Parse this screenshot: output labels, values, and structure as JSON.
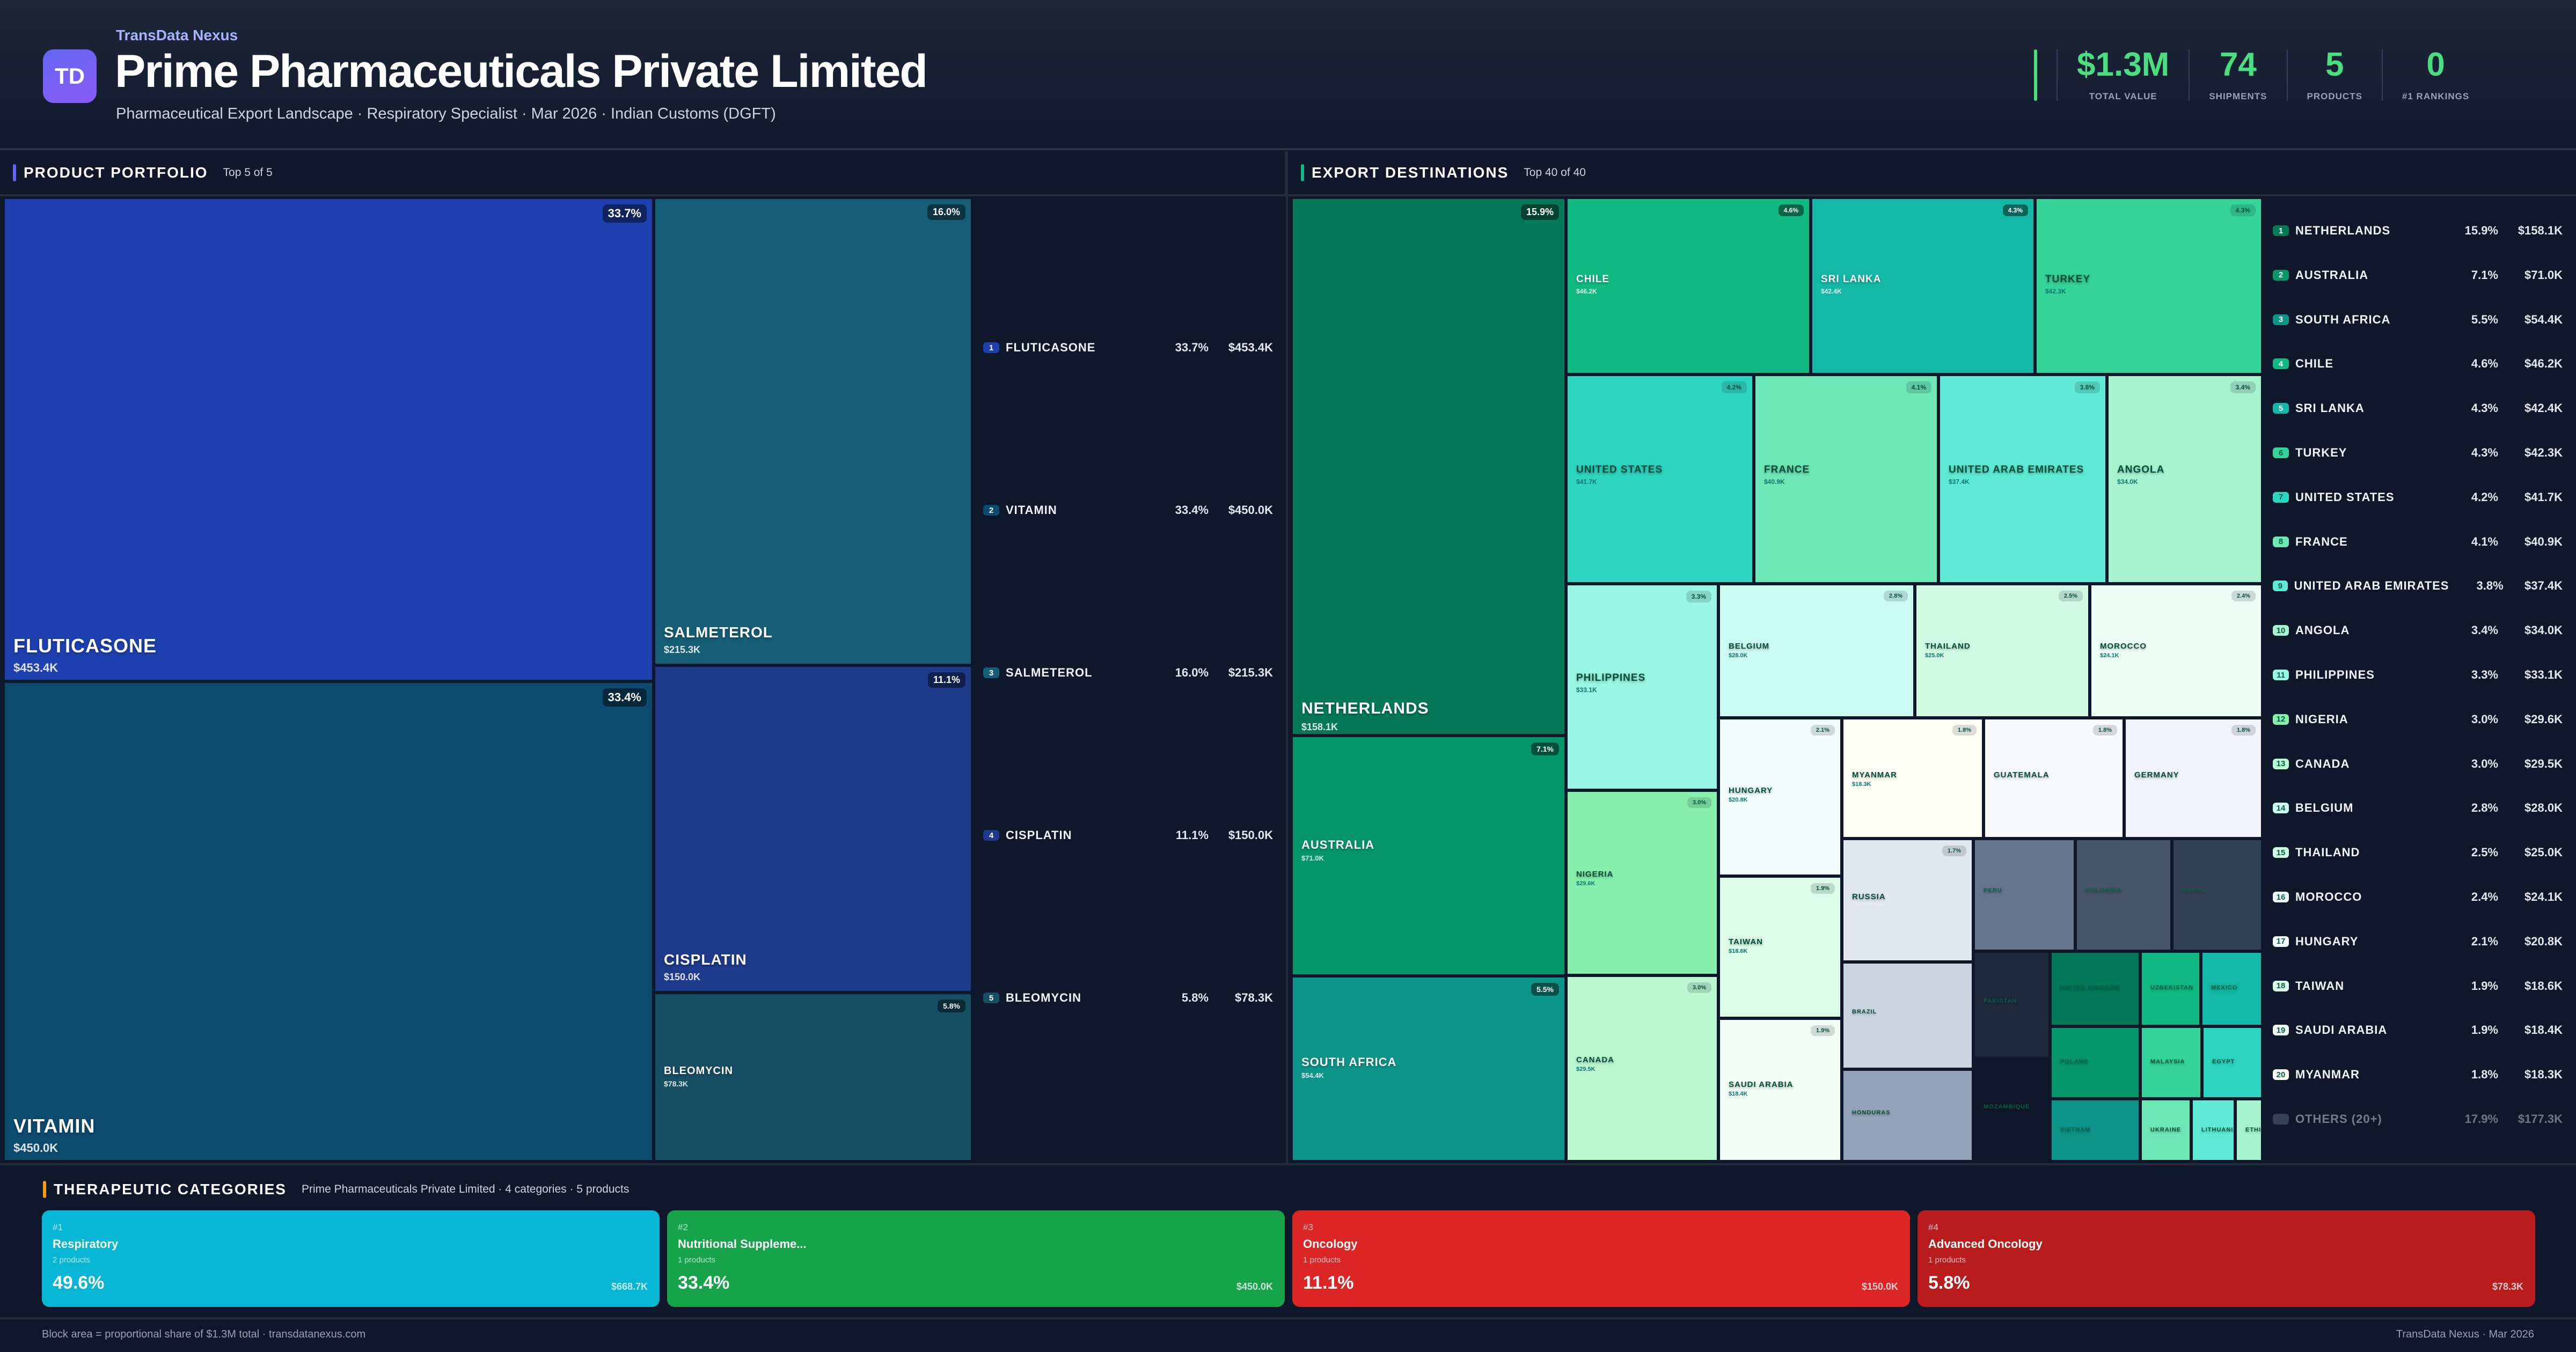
{
  "header": {
    "logo_text": "TD",
    "brand": "TransData Nexus",
    "title": "Prime Pharmaceuticals Private Limited",
    "subtitle": "Pharmaceutical Export Landscape · Respiratory Specialist · Mar 2026 · Indian Customs (DGFT)",
    "accent_color": "#4ade80",
    "kpis": [
      {
        "value": "$1.3M",
        "label": "TOTAL VALUE"
      },
      {
        "value": "74",
        "label": "SHIPMENTS"
      },
      {
        "value": "5",
        "label": "PRODUCTS"
      },
      {
        "value": "0",
        "label": "#1 RANKINGS"
      }
    ]
  },
  "products": {
    "section_title": "PRODUCT PORTFOLIO",
    "section_sub": "Top 5 of 5",
    "accent": "#6366f1",
    "items": [
      {
        "rank": "1",
        "name": "FLUTICASONE",
        "pct": "33.7%",
        "value": "$453.4K",
        "color": "#1e40af"
      },
      {
        "rank": "2",
        "name": "VITAMIN",
        "pct": "33.4%",
        "value": "$450.0K",
        "color": "#0c4a6e"
      },
      {
        "rank": "3",
        "name": "SALMETEROL",
        "pct": "16.0%",
        "value": "$215.3K",
        "color": "#155e75"
      },
      {
        "rank": "4",
        "name": "CISPLATIN",
        "pct": "11.1%",
        "value": "$150.0K",
        "color": "#1e3a8a"
      },
      {
        "rank": "5",
        "name": "BLEOMYCIN",
        "pct": "5.8%",
        "value": "$78.3K",
        "color": "#164e63"
      }
    ]
  },
  "destinations": {
    "section_title": "EXPORT DESTINATIONS",
    "section_sub": "Top 40 of 40",
    "accent": "#10b981",
    "items": [
      {
        "rank": "1",
        "name": "NETHERLANDS",
        "pct": "15.9%",
        "value": "$158.1K",
        "color": "#047857"
      },
      {
        "rank": "2",
        "name": "AUSTRALIA",
        "pct": "7.1%",
        "value": "$71.0K",
        "color": "#059669"
      },
      {
        "rank": "3",
        "name": "SOUTH AFRICA",
        "pct": "5.5%",
        "value": "$54.4K",
        "color": "#0d9488"
      },
      {
        "rank": "4",
        "name": "CHILE",
        "pct": "4.6%",
        "value": "$46.2K",
        "color": "#10b981"
      },
      {
        "rank": "5",
        "name": "SRI LANKA",
        "pct": "4.3%",
        "value": "$42.4K",
        "color": "#14b8a6"
      },
      {
        "rank": "6",
        "name": "TURKEY",
        "pct": "4.3%",
        "value": "$42.3K",
        "color": "#34d399"
      },
      {
        "rank": "7",
        "name": "UNITED STATES",
        "pct": "4.2%",
        "value": "$41.7K",
        "color": "#2dd4bf"
      },
      {
        "rank": "8",
        "name": "FRANCE",
        "pct": "4.1%",
        "value": "$40.9K",
        "color": "#6ee7b7"
      },
      {
        "rank": "9",
        "name": "UNITED ARAB EMIRATES",
        "pct": "3.8%",
        "value": "$37.4K",
        "color": "#5eead4"
      },
      {
        "rank": "10",
        "name": "ANGOLA",
        "pct": "3.4%",
        "value": "$34.0K",
        "color": "#a7f3d0"
      },
      {
        "rank": "11",
        "name": "PHILIPPINES",
        "pct": "3.3%",
        "value": "$33.1K",
        "color": "#99f6e4"
      },
      {
        "rank": "12",
        "name": "NIGERIA",
        "pct": "3.0%",
        "value": "$29.6K",
        "color": "#86efac"
      },
      {
        "rank": "13",
        "name": "CANADA",
        "pct": "3.0%",
        "value": "$29.5K",
        "color": "#bbf7d0"
      },
      {
        "rank": "14",
        "name": "BELGIUM",
        "pct": "2.8%",
        "value": "$28.0K",
        "color": "#ccfbf1"
      },
      {
        "rank": "15",
        "name": "THAILAND",
        "pct": "2.5%",
        "value": "$25.0K",
        "color": "#d1fae5"
      },
      {
        "rank": "16",
        "name": "MOROCCO",
        "pct": "2.4%",
        "value": "$24.1K",
        "color": "#ecfdf5"
      },
      {
        "rank": "17",
        "name": "HUNGARY",
        "pct": "2.1%",
        "value": "$20.8K",
        "color": "#f0fdfa"
      },
      {
        "rank": "18",
        "name": "TAIWAN",
        "pct": "1.9%",
        "value": "$18.6K",
        "color": "#dcfce7"
      },
      {
        "rank": "19",
        "name": "SAUDI ARABIA",
        "pct": "1.9%",
        "value": "$18.4K",
        "color": "#f0fdf4"
      },
      {
        "rank": "20",
        "name": "MYANMAR",
        "pct": "1.8%",
        "value": "$18.3K",
        "color": "#fefff5"
      },
      {
        "rank": "",
        "name": "GUATEMALA",
        "pct": "1.8%",
        "value": "",
        "color": "#f8fafc"
      },
      {
        "rank": "",
        "name": "GERMANY",
        "pct": "1.8%",
        "value": "",
        "color": "#f1f5f9"
      },
      {
        "rank": "",
        "name": "RUSSIA",
        "pct": "1.7%",
        "value": "",
        "color": "#e2e8f0"
      },
      {
        "rank": "",
        "name": "BRAZIL",
        "pct": "",
        "value": "",
        "color": "#cbd5e1"
      },
      {
        "rank": "",
        "name": "HONDURAS",
        "pct": "",
        "value": "",
        "color": "#94a3b8"
      },
      {
        "rank": "",
        "name": "PERU",
        "pct": "",
        "value": "",
        "color": "#64748b"
      },
      {
        "rank": "",
        "name": "COLOMBIA",
        "pct": "",
        "value": "",
        "color": "#475569"
      },
      {
        "rank": "",
        "name": "GHANA",
        "pct": "",
        "value": "",
        "color": "#334155"
      },
      {
        "rank": "",
        "name": "PAKISTAN",
        "pct": "",
        "value": "",
        "color": "#1e293b"
      },
      {
        "rank": "",
        "name": "MOZAMBIQUE",
        "pct": "",
        "value": "",
        "color": "#0f172a"
      },
      {
        "rank": "",
        "name": "UNITED KINGDOM",
        "pct": "",
        "value": "",
        "color": "#047857"
      },
      {
        "rank": "",
        "name": "UZBEKISTAN",
        "pct": "",
        "value": "",
        "color": "#10b981"
      },
      {
        "rank": "",
        "name": "MEXICO",
        "pct": "",
        "value": "",
        "color": "#14b8a6"
      },
      {
        "rank": "",
        "name": "POLAND",
        "pct": "",
        "value": "",
        "color": "#059669"
      },
      {
        "rank": "",
        "name": "MALAYSIA",
        "pct": "",
        "value": "",
        "color": "#34d399"
      },
      {
        "rank": "",
        "name": "EGYPT",
        "pct": "",
        "value": "",
        "color": "#2dd4bf"
      },
      {
        "rank": "",
        "name": "VIETNAM",
        "pct": "",
        "value": "",
        "color": "#0d9488"
      },
      {
        "rank": "",
        "name": "UKRAINE",
        "pct": "",
        "value": "",
        "color": "#6ee7b7"
      },
      {
        "rank": "",
        "name": "LITHUANIA",
        "pct": "",
        "value": "",
        "color": "#5eead4"
      },
      {
        "rank": "",
        "name": "ETHIOPIA",
        "pct": "",
        "value": "",
        "color": "#a7f3d0"
      }
    ],
    "others": {
      "name": "OTHERS (20+)",
      "pct": "17.9%",
      "value": "$177.3K"
    }
  },
  "categories": {
    "section_title": "THERAPEUTIC CATEGORIES",
    "section_sub": "Prime Pharmaceuticals Private Limited · 4 categories · 5 products",
    "accent": "#f59e0b",
    "items": [
      {
        "rank": "#1",
        "name": "Respiratory",
        "count": "2 products",
        "pct": "49.6%",
        "value": "$668.7K",
        "color": "#06b6d4"
      },
      {
        "rank": "#2",
        "name": "Nutritional Suppleme...",
        "count": "1 products",
        "pct": "33.4%",
        "value": "$450.0K",
        "color": "#16a34a"
      },
      {
        "rank": "#3",
        "name": "Oncology",
        "count": "1 products",
        "pct": "11.1%",
        "value": "$150.0K",
        "color": "#dc2626"
      },
      {
        "rank": "#4",
        "name": "Advanced Oncology",
        "count": "1 products",
        "pct": "5.8%",
        "value": "$78.3K",
        "color": "#b91c1c"
      }
    ]
  },
  "footer": {
    "left": "Block area = proportional share of $1.3M total · transdatanexus.com",
    "right": "TransData Nexus · Mar 2026"
  }
}
